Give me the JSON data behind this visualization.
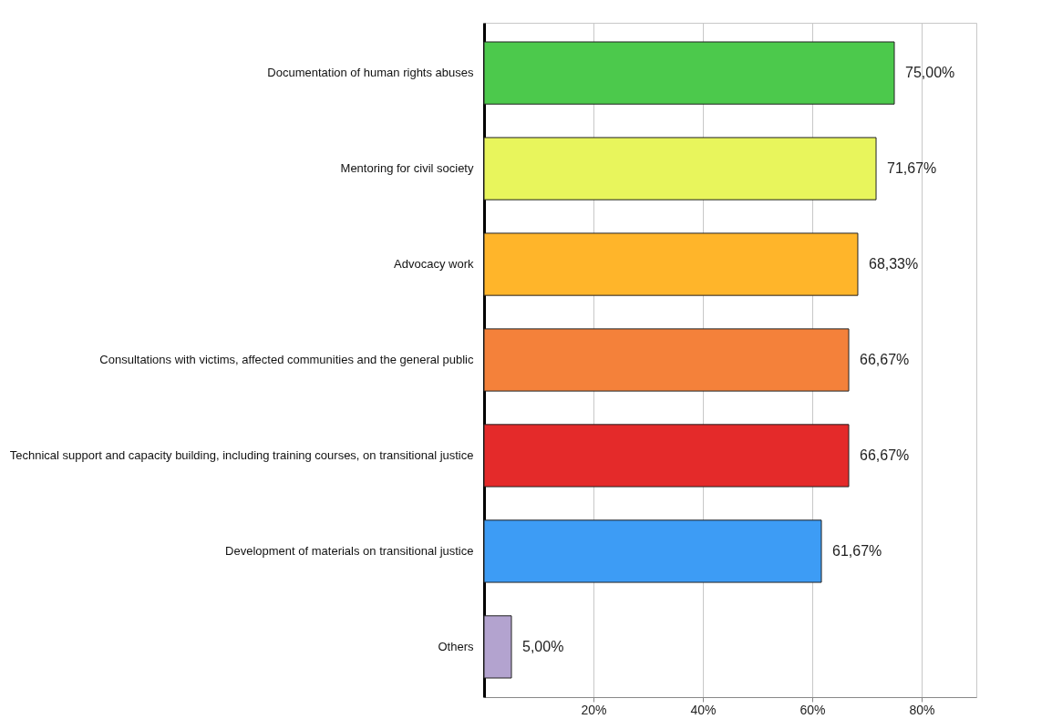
{
  "chart_data": {
    "type": "bar",
    "orientation": "horizontal",
    "categories": [
      "Documentation of human rights abuses",
      "Mentoring for civil society",
      "Advocacy work",
      "Consultations with victims, affected communities and the general public",
      "Technical support and capacity building, including training courses, on transitional justice",
      "Development of materials on transitional justice",
      "Others"
    ],
    "values": [
      75.0,
      71.67,
      68.33,
      66.67,
      66.67,
      61.67,
      5.0
    ],
    "colors": [
      "#4cc94c",
      "#e8f55c",
      "#ffb52a",
      "#f4813a",
      "#e42a2a",
      "#3d9cf5",
      "#b3a3cf"
    ],
    "value_labels": [
      "75,00%",
      "71,67%",
      "68,33%",
      "66,67%",
      "66,67%",
      "61,67%",
      "5,00%"
    ],
    "xlim": [
      0,
      90
    ],
    "xticks": [
      {
        "value": 20,
        "label": "20%"
      },
      {
        "value": 40,
        "label": "40%"
      },
      {
        "value": 60,
        "label": "60%"
      },
      {
        "value": 80,
        "label": "80%"
      }
    ],
    "grid": "x"
  }
}
